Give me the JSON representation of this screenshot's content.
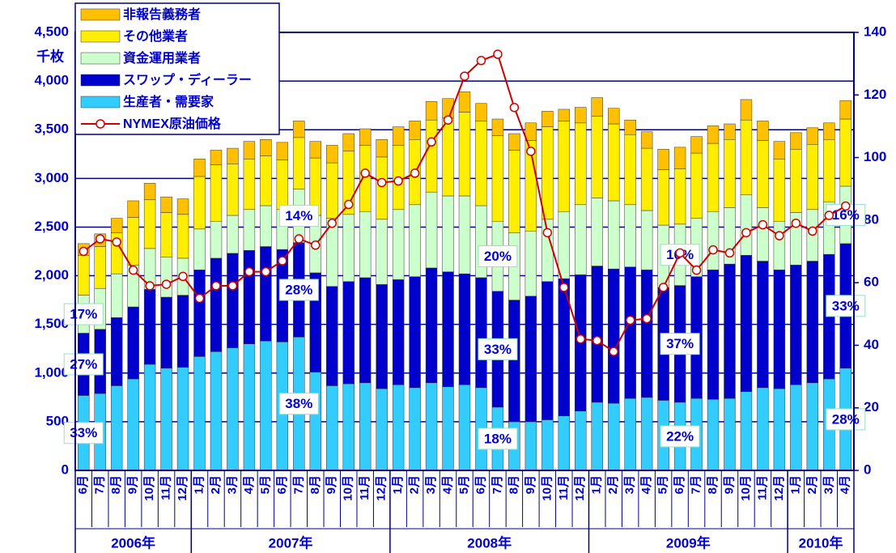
{
  "chart_data": {
    "type": "bar",
    "y_unit": "千枚",
    "category_groups": [
      {
        "label": "2006年",
        "categories": [
          "6月",
          "7月",
          "8月",
          "9月",
          "10月",
          "11月",
          "12月"
        ]
      },
      {
        "label": "2007年",
        "categories": [
          "1月",
          "2月",
          "3月",
          "4月",
          "5月",
          "6月",
          "7月",
          "8月",
          "9月",
          "10月",
          "11月",
          "12月"
        ]
      },
      {
        "label": "2008年",
        "categories": [
          "1月",
          "2月",
          "3月",
          "4月",
          "5月",
          "6月",
          "7月",
          "8月",
          "9月",
          "10月",
          "11月",
          "12月"
        ]
      },
      {
        "label": "2009年",
        "categories": [
          "1月",
          "2月",
          "3月",
          "4月",
          "5月",
          "6月",
          "7月",
          "8月",
          "9月",
          "10月",
          "11月",
          "12月"
        ]
      },
      {
        "label": "2010年",
        "categories": [
          "1月",
          "2月",
          "3月",
          "4月"
        ]
      }
    ],
    "series": [
      {
        "name": "生産者・需要家",
        "color": "#33ccff",
        "values": [
          770,
          790,
          870,
          940,
          1090,
          1050,
          1060,
          1170,
          1220,
          1260,
          1300,
          1330,
          1320,
          1370,
          1010,
          870,
          890,
          900,
          840,
          880,
          850,
          900,
          860,
          880,
          850,
          650,
          500,
          500,
          520,
          560,
          610,
          700,
          690,
          740,
          750,
          720,
          700,
          740,
          730,
          740,
          810,
          850,
          840,
          880,
          900,
          940,
          1050
        ]
      },
      {
        "name": "スワップ・ディーラー",
        "color": "#0000cc",
        "values": [
          640,
          660,
          700,
          740,
          770,
          730,
          740,
          890,
          960,
          970,
          960,
          970,
          950,
          970,
          1020,
          1020,
          1050,
          1080,
          1070,
          1080,
          1140,
          1180,
          1180,
          1140,
          1130,
          1190,
          1250,
          1290,
          1420,
          1410,
          1400,
          1400,
          1380,
          1350,
          1310,
          1160,
          1200,
          1250,
          1330,
          1380,
          1400,
          1300,
          1220,
          1230,
          1250,
          1280,
          1280
        ]
      },
      {
        "name": "資金運用業者",
        "color": "#ccffcc",
        "values": [
          390,
          420,
          450,
          430,
          420,
          410,
          380,
          420,
          380,
          390,
          420,
          420,
          410,
          550,
          590,
          700,
          690,
          680,
          670,
          720,
          740,
          780,
          780,
          800,
          740,
          720,
          690,
          670,
          640,
          690,
          720,
          700,
          700,
          640,
          610,
          640,
          630,
          600,
          600,
          580,
          620,
          550,
          500,
          540,
          530,
          540,
          590
        ]
      },
      {
        "name": "その他業者",
        "color": "#ffee00",
        "values": [
          410,
          430,
          420,
          490,
          500,
          460,
          450,
          540,
          580,
          530,
          520,
          510,
          510,
          530,
          590,
          570,
          650,
          680,
          640,
          660,
          670,
          740,
          800,
          860,
          870,
          880,
          850,
          930,
          950,
          930,
          840,
          840,
          790,
          720,
          640,
          570,
          570,
          670,
          700,
          700,
          770,
          690,
          640,
          650,
          670,
          640,
          690
        ]
      },
      {
        "name": "非報告義務者",
        "color": "#ffc000",
        "values": [
          120,
          130,
          150,
          170,
          170,
          160,
          160,
          180,
          150,
          160,
          180,
          170,
          180,
          170,
          170,
          180,
          180,
          170,
          180,
          190,
          190,
          190,
          200,
          210,
          180,
          170,
          170,
          180,
          160,
          120,
          160,
          190,
          160,
          150,
          170,
          210,
          220,
          170,
          180,
          160,
          210,
          200,
          180,
          170,
          170,
          170,
          190
        ]
      },
      {
        "name": "NYMEX原油価格",
        "color": "#cc0000",
        "type": "line",
        "axis": "y2",
        "values": [
          70,
          74,
          73,
          64,
          59,
          59.5,
          62,
          55,
          59,
          59,
          63.5,
          63.5,
          67,
          74,
          72,
          79,
          85,
          95,
          92,
          92.5,
          95,
          105,
          112,
          126,
          131,
          133,
          116,
          102,
          76,
          58.5,
          42,
          41.5,
          38,
          48,
          48.5,
          58.5,
          69.5,
          64,
          70.5,
          69.5,
          76,
          78.5,
          75,
          79,
          76.5,
          81.5,
          84.5
        ]
      }
    ],
    "share_labels": [
      [
        "33%",
        "27%",
        "17%"
      ],
      [
        "38%",
        "28%",
        "14%"
      ],
      [
        "18%",
        "33%",
        "20%"
      ],
      [
        "22%",
        "37%",
        "16%"
      ],
      [
        "28%",
        "33%",
        "16%"
      ]
    ],
    "ylim": [
      0,
      4500
    ],
    "yticks": [
      0,
      500,
      {
        "value": 1000,
        "label": "1,000"
      },
      {
        "value": 1500,
        "label": "1,500"
      },
      {
        "value": 2000,
        "label": "2,000"
      },
      {
        "value": 2500,
        "label": "2,500"
      },
      {
        "value": 3000,
        "label": "3,000"
      },
      {
        "value": 3500,
        "label": "3,500"
      },
      {
        "value": 4000,
        "label": "4,000"
      },
      {
        "value": 4500,
        "label": "4,500"
      }
    ],
    "y2lim": [
      0,
      140
    ],
    "y2ticks": [
      0,
      20,
      40,
      60,
      80,
      100,
      120,
      140
    ],
    "grid": true,
    "legend": "top-left"
  }
}
